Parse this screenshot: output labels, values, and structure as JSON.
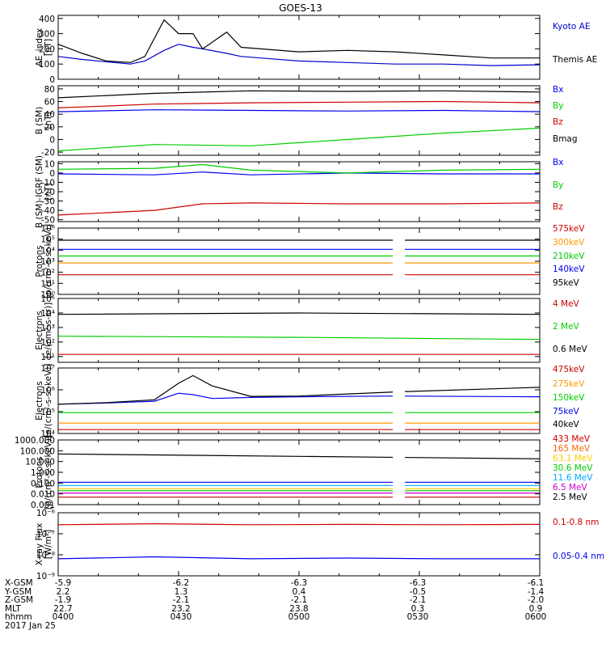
{
  "title": "GOES-13",
  "x_ticks": [
    "0400",
    "0430",
    "0500",
    "0530",
    "0600"
  ],
  "chart_data": [
    {
      "id": "ae",
      "type": "line",
      "ylabel": [
        "AE_index",
        "[nT]"
      ],
      "ylim": [
        0,
        420
      ],
      "log": false,
      "ticks": [
        0,
        100,
        200,
        300,
        400
      ],
      "tick_labels": [
        "0",
        "100",
        "200",
        "300",
        "400"
      ],
      "x": [
        0,
        0.05,
        0.1,
        0.15,
        0.18,
        0.22,
        0.25,
        0.28,
        0.3,
        0.35,
        0.38,
        0.42,
        0.5,
        0.6,
        0.7,
        0.8,
        0.9,
        1.0
      ],
      "series": [
        {
          "name": "Kyoto AE",
          "color": "#0000cc",
          "values": [
            150,
            130,
            115,
            100,
            120,
            190,
            230,
            210,
            200,
            170,
            150,
            140,
            120,
            110,
            100,
            100,
            90,
            95
          ]
        },
        {
          "name": "Themis AE",
          "color": "#000000",
          "values": [
            230,
            170,
            120,
            110,
            150,
            390,
            300,
            300,
            200,
            310,
            210,
            200,
            180,
            190,
            180,
            160,
            140,
            140
          ]
        }
      ],
      "labels": [
        {
          "text": "Kyoto AE",
          "color": "#0000cc"
        },
        {
          "text": "Themis AE",
          "color": "#000000"
        }
      ]
    },
    {
      "id": "bsm",
      "type": "line",
      "ylabel": [
        "B (SM)",
        "[nT]"
      ],
      "ylim": [
        -25,
        85
      ],
      "log": false,
      "ticks": [
        -20,
        0,
        20,
        40,
        60,
        80
      ],
      "tick_labels": [
        "-20",
        "0",
        "20",
        "40",
        "60",
        "80"
      ],
      "x": [
        0,
        0.2,
        0.4,
        0.6,
        0.8,
        1.0
      ],
      "series": [
        {
          "name": "Bx",
          "color": "#0000ee",
          "values": [
            44,
            47,
            46,
            45,
            46,
            44
          ]
        },
        {
          "name": "By",
          "color": "#00cc00",
          "values": [
            -18,
            -8,
            -10,
            0,
            10,
            18
          ]
        },
        {
          "name": "Bz",
          "color": "#cc0000",
          "values": [
            50,
            56,
            58,
            59,
            60,
            58
          ]
        },
        {
          "name": "Bmag",
          "color": "#000000",
          "values": [
            66,
            73,
            77,
            76,
            77,
            75
          ]
        }
      ],
      "labels": [
        {
          "text": "Bx",
          "color": "#0000ee"
        },
        {
          "text": "By",
          "color": "#00cc00"
        },
        {
          "text": "Bz",
          "color": "#cc0000"
        },
        {
          "text": "Bmag",
          "color": "#000000"
        }
      ]
    },
    {
      "id": "bigrf",
      "type": "line",
      "ylabel": [
        "B (SM)-IGRF (SM)",
        "[nT]"
      ],
      "ylim": [
        -52,
        12
      ],
      "log": false,
      "ticks": [
        -50,
        -40,
        -30,
        -20,
        -10,
        0,
        10
      ],
      "tick_labels": [
        "-50",
        "-40",
        "-30",
        "-20",
        "-10",
        "0",
        "10"
      ],
      "x": [
        0,
        0.2,
        0.3,
        0.4,
        0.6,
        0.8,
        1.0
      ],
      "series": [
        {
          "name": "Bx",
          "color": "#0000ee",
          "values": [
            -1,
            -2,
            1,
            -2,
            0,
            -1,
            -1
          ]
        },
        {
          "name": "By",
          "color": "#00cc00",
          "values": [
            4,
            5,
            9,
            3,
            0,
            3,
            4
          ]
        },
        {
          "name": "Bz",
          "color": "#cc0000",
          "values": [
            -45,
            -40,
            -33,
            -32,
            -33,
            -33,
            -32
          ]
        }
      ],
      "labels": [
        {
          "text": "Bx",
          "color": "#0000ee"
        },
        {
          "text": "By",
          "color": "#00cc00"
        },
        {
          "text": "Bz",
          "color": "#cc0000"
        }
      ]
    },
    {
      "id": "protons_kev",
      "type": "line",
      "ylabel": [
        "Protons",
        "[p/(cm²-s-sr-keV)]"
      ],
      "ylim": [
        1,
        1000000
      ],
      "log": true,
      "ticks": [
        1,
        10,
        100,
        1000,
        10000,
        100000,
        1000000
      ],
      "tick_labels": [
        "10⁰",
        "10¹",
        "10²",
        "10³",
        "10⁴",
        "10⁵",
        "10⁶"
      ],
      "x": [
        0,
        0.5,
        1.0
      ],
      "gap": [
        0.695,
        0.72
      ],
      "series": [
        {
          "name": "575keV",
          "color": "#cc0000",
          "values": [
            60,
            60,
            60
          ]
        },
        {
          "name": "300keV",
          "color": "#ff9900",
          "values": [
            700,
            700,
            700
          ]
        },
        {
          "name": "210keV",
          "color": "#00cc00",
          "values": [
            3000,
            3000,
            3000
          ]
        },
        {
          "name": "140keV",
          "color": "#0000ee",
          "values": [
            12000,
            12000,
            12000
          ]
        },
        {
          "name": "95keV",
          "color": "#000000",
          "values": [
            80000,
            80000,
            80000
          ]
        }
      ],
      "labels": [
        {
          "text": "575keV",
          "color": "#cc0000"
        },
        {
          "text": "300keV",
          "color": "#ff9900"
        },
        {
          "text": "210keV",
          "color": "#00cc00"
        },
        {
          "text": "140keV",
          "color": "#0000ee"
        },
        {
          "text": "95keV",
          "color": "#000000"
        }
      ]
    },
    {
      "id": "electrons_mev",
      "type": "line",
      "ylabel": [
        "Electrons",
        "[e/(cm²-s-sr)]"
      ],
      "ylim": [
        4,
        100000
      ],
      "log": true,
      "ticks": [
        10,
        100,
        1000,
        10000,
        100000
      ],
      "tick_labels": [
        "10¹",
        "10²",
        "10³",
        "10⁴",
        "10⁵"
      ],
      "x": [
        0,
        0.5,
        1.0
      ],
      "series": [
        {
          "name": "4 MeV",
          "color": "#cc0000",
          "values": [
            14,
            14,
            14
          ]
        },
        {
          "name": "2 MeV",
          "color": "#00cc00",
          "values": [
            250,
            210,
            150
          ]
        },
        {
          "name": "0.6 MeV",
          "color": "#000000",
          "values": [
            8000,
            10000,
            8000
          ]
        }
      ],
      "labels": [
        {
          "text": "4 MeV",
          "color": "#cc0000"
        },
        {
          "text": "2 MeV",
          "color": "#00cc00"
        },
        {
          "text": "0.6 MeV",
          "color": "#000000"
        }
      ]
    },
    {
      "id": "electrons_kev",
      "type": "line",
      "ylabel": [
        "Electrons",
        "[e/(cm²-s-sr-keV)]"
      ],
      "ylim": [
        10000,
        10000000
      ],
      "log": true,
      "ticks": [
        10000,
        100000,
        1000000,
        10000000
      ],
      "tick_labels": [
        "10⁴",
        "10⁵",
        "10⁶",
        "10⁷"
      ],
      "x": [
        0,
        0.1,
        0.2,
        0.25,
        0.28,
        0.32,
        0.4,
        0.5,
        0.7,
        1.0
      ],
      "gap": [
        0.695,
        0.72
      ],
      "series": [
        {
          "name": "475keV",
          "color": "#cc0000",
          "values": [
            15000,
            15000,
            15000,
            15000,
            15000,
            15000,
            15000,
            15000,
            15000,
            15000
          ]
        },
        {
          "name": "275keV",
          "color": "#ff9900",
          "values": [
            30000,
            30000,
            30000,
            30000,
            30000,
            30000,
            30000,
            30000,
            30000,
            30000
          ]
        },
        {
          "name": "150keV",
          "color": "#00cc00",
          "values": [
            90000,
            90000,
            90000,
            90000,
            90000,
            90000,
            90000,
            90000,
            90000,
            90000
          ]
        },
        {
          "name": "75keV",
          "color": "#0000ee",
          "values": [
            220000,
            250000,
            300000,
            700000,
            600000,
            400000,
            450000,
            480000,
            520000,
            480000
          ]
        },
        {
          "name": "40keV",
          "color": "#000000",
          "values": [
            220000,
            260000,
            350000,
            2000000,
            4500000,
            1500000,
            500000,
            520000,
            800000,
            1300000
          ]
        }
      ],
      "labels": [
        {
          "text": "475keV",
          "color": "#cc0000"
        },
        {
          "text": "275keV",
          "color": "#ff9900"
        },
        {
          "text": "150keV",
          "color": "#00cc00"
        },
        {
          "text": "75keV",
          "color": "#0000ee"
        },
        {
          "text": "40keV",
          "color": "#000000"
        }
      ]
    },
    {
      "id": "protons_mev",
      "type": "line",
      "ylabel": [
        "Protons",
        "[p/(cm²-s-sr-keV)]"
      ],
      "ylim": [
        0.001,
        1000
      ],
      "log": true,
      "ticks": [
        0.001,
        0.01,
        0.1,
        1,
        10,
        100,
        1000
      ],
      "tick_labels": [
        "0.001",
        "0.010",
        "0.100",
        "1.000",
        "10.000",
        "100.000",
        "1000.000"
      ],
      "x": [
        0,
        0.5,
        1.0
      ],
      "gap": [
        0.695,
        0.72
      ],
      "series": [
        {
          "name": "433 MeV",
          "color": "#000000",
          "values": [
            50,
            30,
            18
          ]
        },
        {
          "name": "165 MeV",
          "color": "#cc0000",
          "values": [
            0.005,
            0.005,
            0.005
          ]
        },
        {
          "name": "63.1 MeV",
          "color": "#ffcc00",
          "values": [
            0.03,
            0.03,
            0.03
          ]
        },
        {
          "name": "30.6 MeV",
          "color": "#00cc00",
          "values": [
            0.02,
            0.02,
            0.02
          ]
        },
        {
          "name": "11.6 MeV",
          "color": "#00aaff",
          "values": [
            0.06,
            0.06,
            0.06
          ]
        },
        {
          "name": "6.5 MeV",
          "color": "#cc00cc",
          "values": [
            0.012,
            0.012,
            0.012
          ]
        },
        {
          "name": "2.5 MeV",
          "color": "#0000ee",
          "values": [
            0.12,
            0.12,
            0.12
          ]
        }
      ],
      "labels": [
        {
          "text": "433 MeV",
          "color": "#cc0000"
        },
        {
          "text": "165 MeV",
          "color": "#ff6600"
        },
        {
          "text": "63.1 MeV",
          "color": "#ffcc00"
        },
        {
          "text": "30.6 MeV",
          "color": "#00cc00"
        },
        {
          "text": "11.6 MeV",
          "color": "#00aaff"
        },
        {
          "text": "6.5 MeV",
          "color": "#cc00cc"
        },
        {
          "text": "2.5 MeV",
          "color": "#000000"
        }
      ]
    },
    {
      "id": "xray",
      "type": "line",
      "ylabel": [
        "X-ray Flux",
        "[W/m²]"
      ],
      "ylim": [
        1e-09,
        1e-06
      ],
      "log": true,
      "ticks": [
        1e-09,
        1e-08,
        1e-07,
        1e-06
      ],
      "tick_labels": [
        "10⁻⁹",
        "10⁻⁸",
        "10⁻⁷",
        "10⁻⁶"
      ],
      "x": [
        0,
        0.2,
        0.4,
        0.6,
        0.8,
        1.0
      ],
      "series": [
        {
          "name": "0.1-0.8 nm",
          "color": "#cc0000",
          "values": [
            2.7e-07,
            3e-07,
            2.7e-07,
            2.8e-07,
            2.7e-07,
            2.8e-07
          ]
        },
        {
          "name": "0.05-0.4 nm",
          "color": "#0000ee",
          "values": [
            6.5e-09,
            8e-09,
            6.5e-09,
            7e-09,
            6.5e-09,
            6.5e-09
          ]
        }
      ],
      "labels": [
        {
          "text": "0.1-0.8 nm",
          "color": "#cc0000"
        },
        {
          "text": "0.05-0.4 nm",
          "color": "#0000ee"
        }
      ]
    }
  ],
  "footer": {
    "date": "2017 Jan 25",
    "rows": [
      {
        "label": "X-GSM",
        "values": [
          "-5.9",
          "-6.2",
          "-6.3",
          "-6.3",
          "-6.1"
        ]
      },
      {
        "label": "Y-GSM",
        "values": [
          "2.2",
          "1.3",
          "0.4",
          "-0.5",
          "-1.4"
        ]
      },
      {
        "label": "Z-GSM",
        "values": [
          "-1.9",
          "-2.1",
          "-2.1",
          "-2.1",
          "-2.0"
        ]
      },
      {
        "label": "MLT",
        "values": [
          "22.7",
          "23.2",
          "23.8",
          "0.3",
          "0.9"
        ]
      },
      {
        "label": "hhmm",
        "values": [
          "0400",
          "0430",
          "0500",
          "0530",
          "0600"
        ]
      }
    ]
  }
}
